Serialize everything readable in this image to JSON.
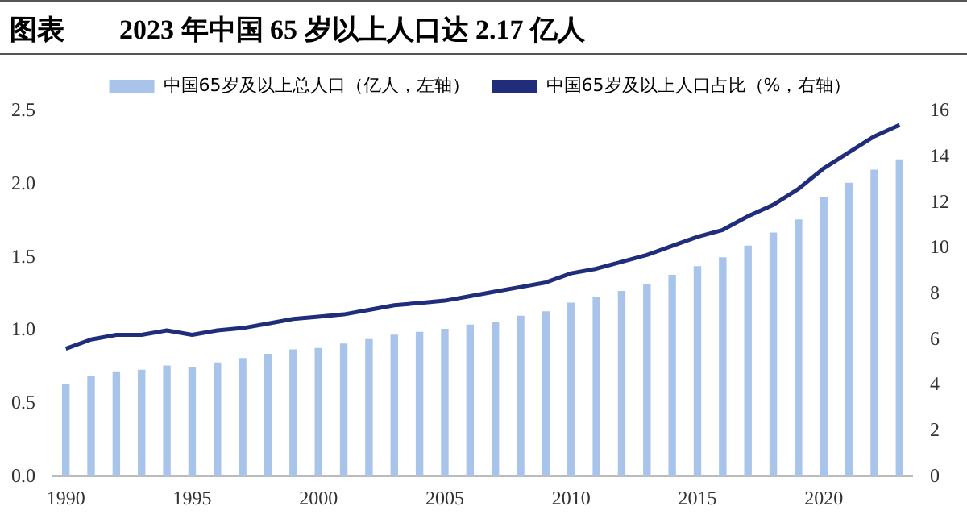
{
  "chart_data": {
    "type": "bar",
    "title": "图表　　2023 年中国 65 岁以上人口达 2.17 亿人",
    "categories": [
      "1990",
      null,
      null,
      null,
      null,
      "1995",
      null,
      null,
      null,
      null,
      "2000",
      null,
      null,
      null,
      null,
      "2005",
      null,
      null,
      null,
      null,
      "2010",
      null,
      null,
      null,
      null,
      "2015",
      null,
      null,
      null,
      null,
      "2020",
      null,
      null,
      null
    ],
    "series": [
      {
        "name": "中国65岁及以上总人口（亿人，左轴）",
        "color": "#a9c4eb",
        "values": [
          0.63,
          0.69,
          0.72,
          0.73,
          0.76,
          0.75,
          0.78,
          0.81,
          0.84,
          0.87,
          0.88,
          0.91,
          0.94,
          0.97,
          0.99,
          1.01,
          1.04,
          1.06,
          1.1,
          1.13,
          1.19,
          1.23,
          1.27,
          1.32,
          1.38,
          1.44,
          1.5,
          1.58,
          1.67,
          1.76,
          1.91,
          2.01,
          2.1,
          2.17
        ]
      },
      {
        "name": "中国65岁及以上人口占比（%，右轴）",
        "type": "line",
        "axis": "y2",
        "color": "#1f2d7a",
        "values": [
          5.6,
          6.0,
          6.2,
          6.2,
          6.4,
          6.2,
          6.4,
          6.5,
          6.7,
          6.9,
          7.0,
          7.1,
          7.3,
          7.5,
          7.6,
          7.7,
          7.9,
          8.1,
          8.3,
          8.5,
          8.9,
          9.1,
          9.4,
          9.7,
          10.1,
          10.5,
          10.8,
          11.4,
          11.9,
          12.6,
          13.5,
          14.2,
          14.9,
          15.4
        ]
      }
    ],
    "ylim": [
      0,
      2.5
    ],
    "yticks": [
      {
        "value": 0,
        "label": "0.0"
      },
      {
        "value": 0.5,
        "label": "0.5"
      },
      {
        "value": 1,
        "label": "1.0"
      },
      {
        "value": 1.5,
        "label": "1.5"
      },
      {
        "value": 2,
        "label": "2.0"
      },
      {
        "value": 2.5,
        "label": "2.5"
      }
    ],
    "y2lim": [
      0,
      16
    ],
    "y2ticks": [
      0,
      2,
      4,
      6,
      8,
      10,
      12,
      14,
      16
    ],
    "grid": false,
    "legend": "top",
    "marker": "none",
    "line_style": "solid"
  }
}
